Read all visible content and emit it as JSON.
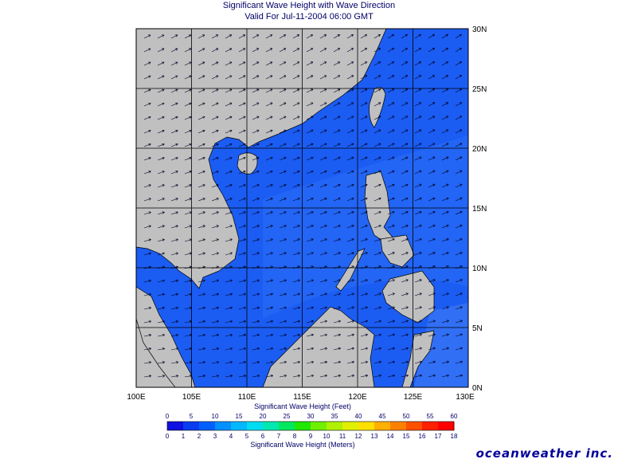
{
  "header": {
    "title": "Significant Wave Height with Wave Direction",
    "subtitle": "Valid For Jul-11-2004 06:00 GMT"
  },
  "map": {
    "lon_range": [
      100,
      130
    ],
    "lat_range": [
      0,
      30
    ],
    "lon_ticks": [
      "100E",
      "105E",
      "110E",
      "115E",
      "120E",
      "125E",
      "130E"
    ],
    "lat_ticks": [
      "30N",
      "25N",
      "20N",
      "15N",
      "10N",
      "5N",
      "0N"
    ],
    "grid": true,
    "land_color": "#c0c0c0",
    "sea_color": "#1b5cf2",
    "wave_direction_label": "Wave Direction"
  },
  "legend": {
    "feet_title": "Significant Wave Height (Feet)",
    "feet_ticks": [
      "0",
      "5",
      "10",
      "15",
      "20",
      "25",
      "30",
      "35",
      "40",
      "45",
      "50",
      "55",
      "60"
    ],
    "meters_title": "Significant Wave Height (Meters)",
    "meters_ticks": [
      "0",
      "1",
      "2",
      "3",
      "4",
      "5",
      "6",
      "7",
      "8",
      "9",
      "10",
      "11",
      "12",
      "13",
      "14",
      "15",
      "16",
      "17",
      "18"
    ],
    "colors": [
      "#1010e0",
      "#0a3cf0",
      "#0060ff",
      "#0090ff",
      "#00b8ff",
      "#00dcf0",
      "#00e8b0",
      "#00e860",
      "#20e800",
      "#70f000",
      "#b0f000",
      "#e0f000",
      "#ffe000",
      "#ffb000",
      "#ff8000",
      "#ff5000",
      "#ff2000",
      "#ff0000"
    ]
  },
  "brand": "oceanweather inc."
}
